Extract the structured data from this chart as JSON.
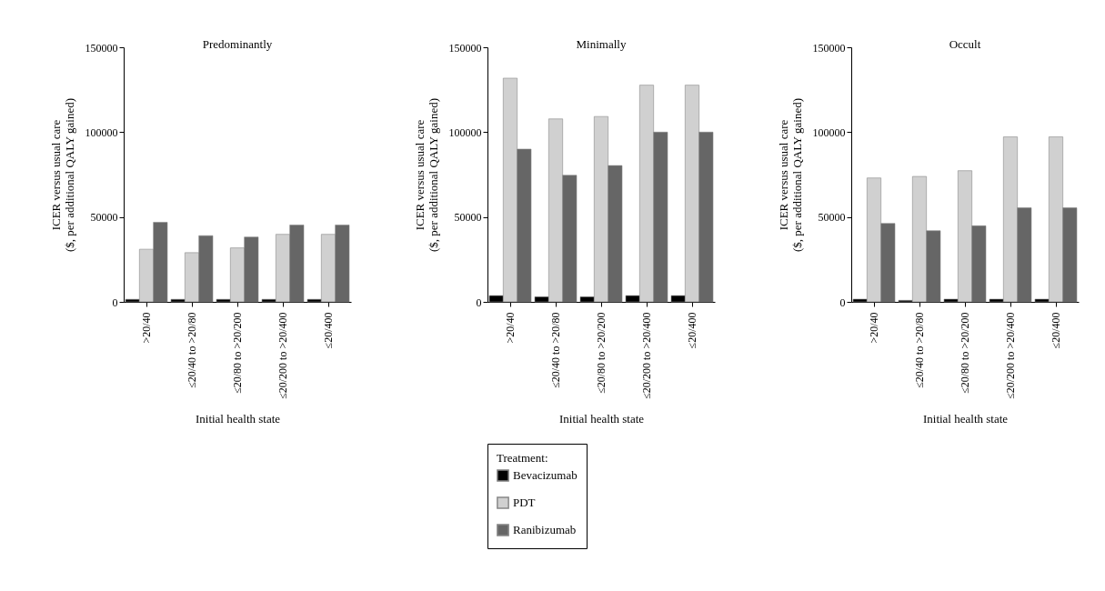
{
  "chart_data": [
    {
      "type": "bar",
      "title": "Predominantly",
      "xlabel": "Initial health state",
      "ylabel": "ICER versus usual care\n($, per additional QALY gained)",
      "categories": [
        ">20/40",
        "≤20/40 to >20/80",
        "≤20/80 to >20/200",
        "≤20/200 to >20/400",
        "≤20/400"
      ],
      "ylim": [
        0,
        150000
      ],
      "yticks": [
        0,
        50000,
        100000,
        150000
      ],
      "series": [
        {
          "color": "#000000",
          "values": [
            1500,
            1500,
            1500,
            1500,
            1500
          ]
        },
        {
          "color": "#d0d0d0",
          "values": [
            31000,
            29000,
            31800,
            39800,
            39800
          ]
        },
        {
          "color": "#666666",
          "values": [
            46900,
            39000,
            38200,
            45300,
            45300
          ]
        }
      ]
    },
    {
      "type": "bar",
      "title": "Minimally",
      "xlabel": "Initial health state",
      "ylabel": "ICER versus usual care\n($, per additional QALY gained)",
      "categories": [
        ">20/40",
        "≤20/40 to >20/80",
        "≤20/80 to >20/200",
        "≤20/200 to >20/400",
        "≤20/400"
      ],
      "ylim": [
        0,
        150000
      ],
      "yticks": [
        0,
        50000,
        100000,
        150000
      ],
      "legend": "bottom",
      "legend_title": "Treatment:",
      "series": [
        {
          "name": "Bevacizumab",
          "color": "#000000",
          "values": [
            3700,
            3000,
            3000,
            3700,
            3700
          ]
        },
        {
          "name": "PDT",
          "color": "#d0d0d0",
          "values": [
            131800,
            107800,
            109200,
            127700,
            127700
          ]
        },
        {
          "name": "Ranibizumab",
          "color": "#666666",
          "values": [
            90000,
            74600,
            80300,
            100000,
            100000
          ]
        }
      ]
    },
    {
      "type": "bar",
      "title": "Occult",
      "xlabel": "Initial health state",
      "ylabel": "ICER versus usual care\n($, per additional QALY gained)",
      "categories": [
        ">20/40",
        "≤20/40 to >20/80",
        "≤20/80 to >20/200",
        "≤20/200 to >20/400",
        "≤20/400"
      ],
      "ylim": [
        0,
        150000
      ],
      "yticks": [
        0,
        50000,
        100000,
        150000
      ],
      "series": [
        {
          "color": "#000000",
          "values": [
            1600,
            900,
            1600,
            1600,
            1600
          ]
        },
        {
          "color": "#d0d0d0",
          "values": [
            73000,
            73900,
            77300,
            97200,
            97200
          ]
        },
        {
          "color": "#666666",
          "values": [
            46200,
            41900,
            44800,
            55400,
            55400
          ]
        }
      ]
    }
  ]
}
